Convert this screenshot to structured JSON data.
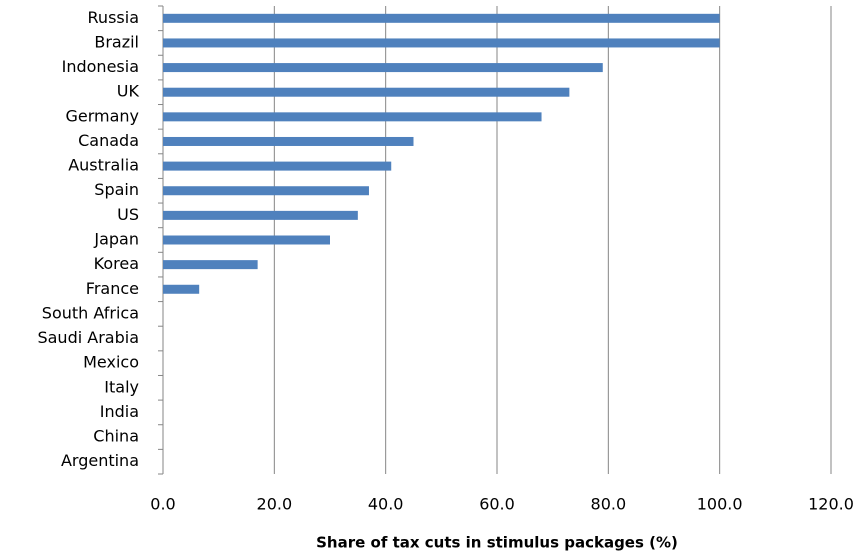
{
  "chart_data": {
    "type": "bar",
    "orientation": "horizontal",
    "x_label": "Share of tax cuts in stimulus packages (%)",
    "categories": [
      "Russia",
      "Brazil",
      "Indonesia",
      "UK",
      "Germany",
      "Canada",
      "Australia",
      "Spain",
      "US",
      "Japan",
      "Korea",
      "France",
      "South Africa",
      "Saudi Arabia",
      "Mexico",
      "Italy",
      "India",
      "China",
      "Argentina"
    ],
    "values": [
      100,
      100,
      79,
      73,
      68,
      45,
      41,
      37,
      35,
      30,
      17,
      6.5,
      0,
      0,
      0,
      0,
      0,
      0,
      0
    ],
    "color": "#4f81bd",
    "xlim": [
      0,
      120
    ],
    "xticks": [
      {
        "value": 0,
        "label": "0.0"
      },
      {
        "value": 20,
        "label": "20.0"
      },
      {
        "value": 40,
        "label": "40.0"
      },
      {
        "value": 60,
        "label": "60.0"
      },
      {
        "value": 80,
        "label": "80.0"
      },
      {
        "value": 100,
        "label": "100.0"
      },
      {
        "value": 120,
        "label": "120.0"
      }
    ],
    "grid": true
  }
}
